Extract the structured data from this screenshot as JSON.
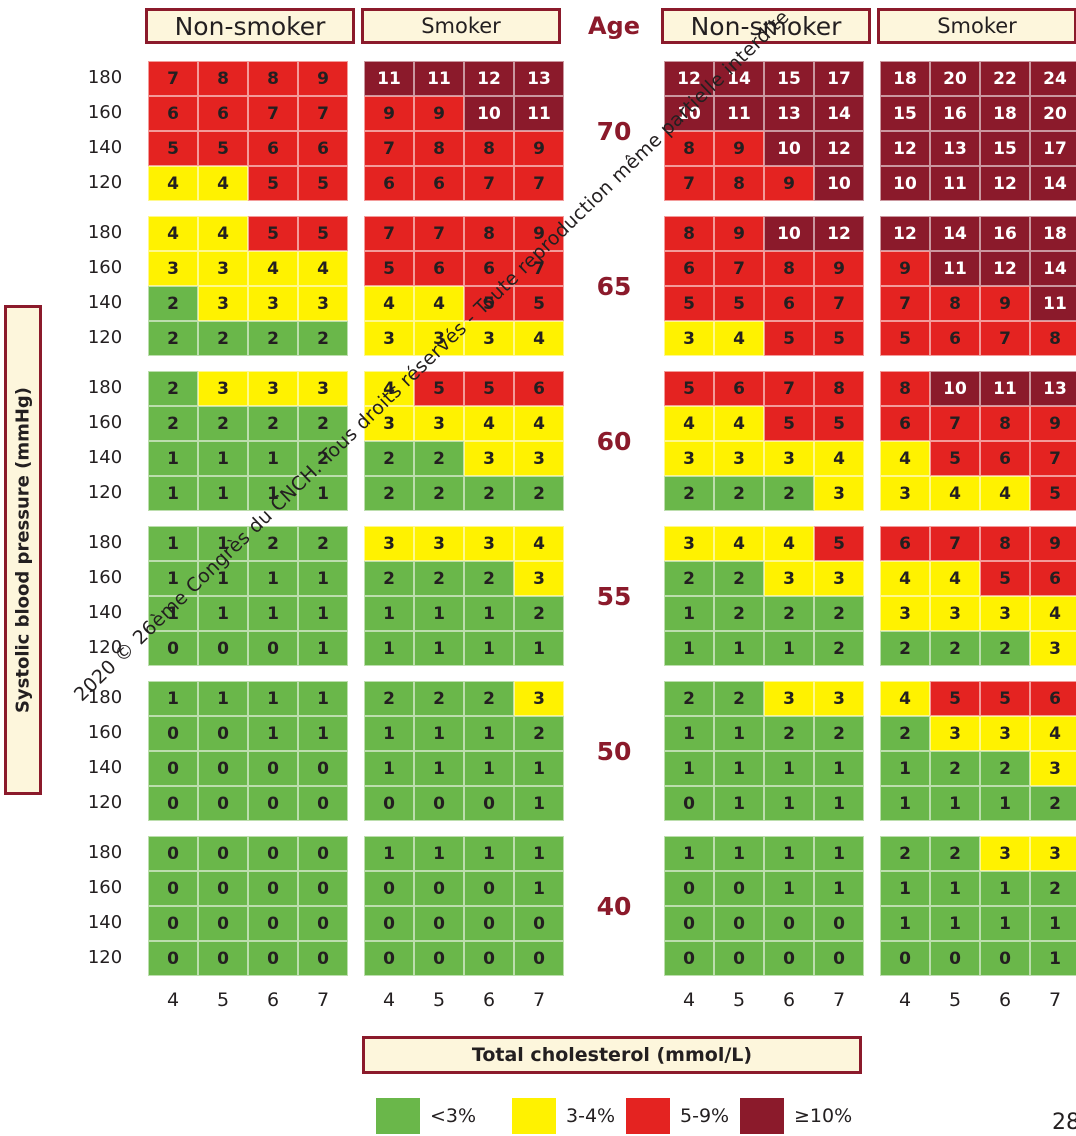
{
  "chart_data": {
    "type": "heatmap",
    "title": "",
    "xlabel": "Total cholesterol (mmol/L)",
    "ylabel": "Systolic blood pressure (mmHg)",
    "panel_headers": [
      "Non-smoker",
      "Smoker",
      "Non-smoker",
      "Smoker"
    ],
    "age_header": "Age",
    "ages": [
      "70",
      "65",
      "60",
      "55",
      "50",
      "40"
    ],
    "sbp_levels": [
      "180",
      "160",
      "140",
      "120"
    ],
    "cholesterol": [
      "4",
      "5",
      "6",
      "7"
    ],
    "legend": [
      "<3%",
      "3-4%",
      "5-9%",
      "≥10%"
    ],
    "grid": [
      [
        [
          [
            7,
            8,
            8,
            9
          ],
          [
            6,
            6,
            7,
            7
          ],
          [
            5,
            5,
            6,
            6
          ],
          [
            4,
            4,
            5,
            5
          ]
        ],
        [
          [
            11,
            11,
            12,
            13
          ],
          [
            9,
            9,
            10,
            11
          ],
          [
            7,
            8,
            8,
            9
          ],
          [
            6,
            6,
            7,
            7
          ]
        ],
        [
          [
            12,
            14,
            15,
            17
          ],
          [
            10,
            11,
            13,
            14
          ],
          [
            8,
            9,
            10,
            12
          ],
          [
            7,
            8,
            9,
            10
          ]
        ],
        [
          [
            18,
            20,
            22,
            24
          ],
          [
            15,
            16,
            18,
            20
          ],
          [
            12,
            13,
            15,
            17
          ],
          [
            10,
            11,
            12,
            14
          ]
        ]
      ],
      [
        [
          [
            4,
            4,
            5,
            5
          ],
          [
            3,
            3,
            4,
            4
          ],
          [
            2,
            3,
            3,
            3
          ],
          [
            2,
            2,
            2,
            2
          ]
        ],
        [
          [
            7,
            7,
            8,
            9
          ],
          [
            5,
            6,
            6,
            7
          ],
          [
            4,
            4,
            5,
            5
          ],
          [
            3,
            3,
            3,
            4
          ]
        ],
        [
          [
            8,
            9,
            10,
            12
          ],
          [
            6,
            7,
            8,
            9
          ],
          [
            5,
            5,
            6,
            7
          ],
          [
            3,
            4,
            5,
            5
          ]
        ],
        [
          [
            12,
            14,
            16,
            18
          ],
          [
            9,
            11,
            12,
            14
          ],
          [
            7,
            8,
            9,
            11
          ],
          [
            5,
            6,
            7,
            8
          ]
        ]
      ],
      [
        [
          [
            2,
            3,
            3,
            3
          ],
          [
            2,
            2,
            2,
            2
          ],
          [
            1,
            1,
            1,
            2
          ],
          [
            1,
            1,
            1,
            1
          ]
        ],
        [
          [
            4,
            5,
            5,
            6
          ],
          [
            3,
            3,
            4,
            4
          ],
          [
            2,
            2,
            3,
            3
          ],
          [
            2,
            2,
            2,
            2
          ]
        ],
        [
          [
            5,
            6,
            7,
            8
          ],
          [
            4,
            4,
            5,
            5
          ],
          [
            3,
            3,
            3,
            4
          ],
          [
            2,
            2,
            2,
            3
          ]
        ],
        [
          [
            8,
            10,
            11,
            13
          ],
          [
            6,
            7,
            8,
            9
          ],
          [
            4,
            5,
            6,
            7
          ],
          [
            3,
            4,
            4,
            5
          ]
        ]
      ],
      [
        [
          [
            1,
            1,
            2,
            2
          ],
          [
            1,
            1,
            1,
            1
          ],
          [
            1,
            1,
            1,
            1
          ],
          [
            0,
            0,
            0,
            1
          ]
        ],
        [
          [
            3,
            3,
            3,
            4
          ],
          [
            2,
            2,
            2,
            3
          ],
          [
            1,
            1,
            1,
            2
          ],
          [
            1,
            1,
            1,
            1
          ]
        ],
        [
          [
            3,
            4,
            4,
            5
          ],
          [
            2,
            2,
            3,
            3
          ],
          [
            1,
            2,
            2,
            2
          ],
          [
            1,
            1,
            1,
            2
          ]
        ],
        [
          [
            6,
            7,
            8,
            9
          ],
          [
            4,
            4,
            5,
            6
          ],
          [
            3,
            3,
            3,
            4
          ],
          [
            2,
            2,
            2,
            3
          ]
        ]
      ],
      [
        [
          [
            1,
            1,
            1,
            1
          ],
          [
            0,
            0,
            1,
            1
          ],
          [
            0,
            0,
            0,
            0
          ],
          [
            0,
            0,
            0,
            0
          ]
        ],
        [
          [
            2,
            2,
            2,
            3
          ],
          [
            1,
            1,
            1,
            2
          ],
          [
            1,
            1,
            1,
            1
          ],
          [
            0,
            0,
            0,
            1
          ]
        ],
        [
          [
            2,
            2,
            3,
            3
          ],
          [
            1,
            1,
            2,
            2
          ],
          [
            1,
            1,
            1,
            1
          ],
          [
            0,
            1,
            1,
            1
          ]
        ],
        [
          [
            4,
            5,
            5,
            6
          ],
          [
            2,
            3,
            3,
            4
          ],
          [
            1,
            2,
            2,
            3
          ],
          [
            1,
            1,
            1,
            2
          ]
        ]
      ],
      [
        [
          [
            0,
            0,
            0,
            0
          ],
          [
            0,
            0,
            0,
            0
          ],
          [
            0,
            0,
            0,
            0
          ],
          [
            0,
            0,
            0,
            0
          ]
        ],
        [
          [
            1,
            1,
            1,
            1
          ],
          [
            0,
            0,
            0,
            1
          ],
          [
            0,
            0,
            0,
            0
          ],
          [
            0,
            0,
            0,
            0
          ]
        ],
        [
          [
            1,
            1,
            1,
            1
          ],
          [
            0,
            0,
            1,
            1
          ],
          [
            0,
            0,
            0,
            0
          ],
          [
            0,
            0,
            0,
            0
          ]
        ],
        [
          [
            2,
            2,
            3,
            3
          ],
          [
            1,
            1,
            1,
            2
          ],
          [
            1,
            1,
            1,
            1
          ],
          [
            0,
            0,
            0,
            1
          ]
        ]
      ]
    ]
  },
  "colors": {
    "green": "#6ab74a",
    "yellow": "#fff200",
    "red": "#e42321",
    "darkred": "#8b1a2b",
    "accent": "#8b1a2b",
    "header_fill": "#fdf6dc"
  },
  "watermark": "2020 © 26ème Congrès du CNCH. Tous droits réservés - Toute reproduction même partielle interdite",
  "corner_text": "28"
}
